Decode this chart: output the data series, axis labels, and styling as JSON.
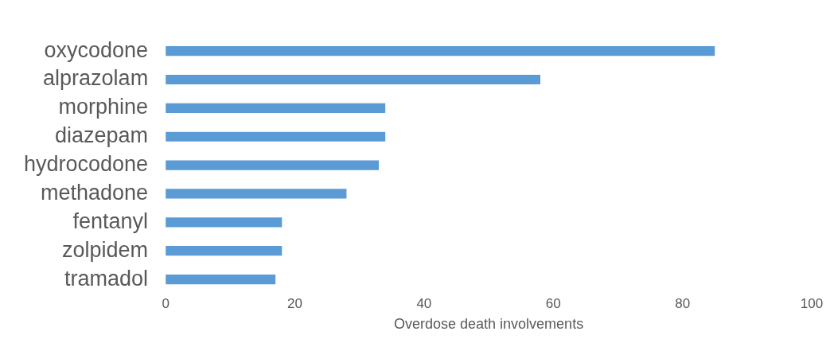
{
  "chart_data": {
    "type": "bar",
    "orientation": "horizontal",
    "xlabel": "Overdose death involvements",
    "categories": [
      "oxycodone",
      "alprazolam",
      "morphine",
      "diazepam",
      "hydrocodone",
      "methadone",
      "fentanyl",
      "zolpidem",
      "tramadol"
    ],
    "values": [
      85,
      58,
      34,
      34,
      33,
      28,
      18,
      18,
      17
    ],
    "color": "#5b9bd5",
    "xlim": [
      0,
      100
    ],
    "xticks": [
      0,
      20,
      40,
      60,
      80,
      100
    ],
    "grid": false,
    "legend": false
  }
}
